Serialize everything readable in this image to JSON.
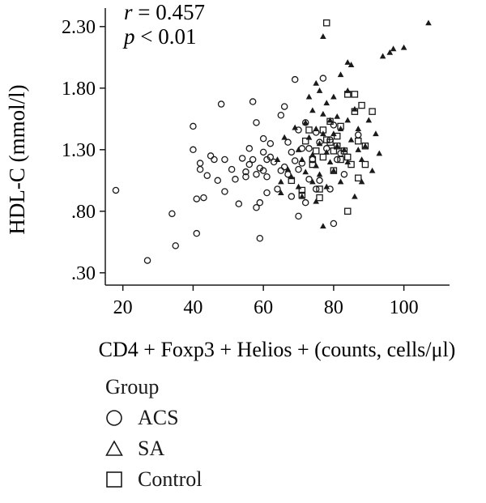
{
  "chart_data": {
    "type": "scatter",
    "xlabel": "CD4 + Foxp3 + Helios + (counts, cells/μl)",
    "ylabel": "HDL-C (mmol/l)",
    "xlim": [
      15,
      113
    ],
    "ylim": [
      0.2,
      2.45
    ],
    "x_ticks": [
      20,
      40,
      60,
      80,
      100
    ],
    "x_tick_labels": [
      "20",
      "40",
      "60",
      "80",
      "100"
    ],
    "y_ticks": [
      0.3,
      0.8,
      1.3,
      1.8,
      2.3
    ],
    "y_tick_labels": [
      ".30",
      ".80",
      "1.30",
      "1.80",
      "2.30"
    ],
    "grid": false,
    "legend_placement": "bottom-left",
    "annotations": [
      {
        "text_r": "r",
        "text_rest": " = 0.457"
      },
      {
        "text_p": "p",
        "text_rest": " < 0.01"
      }
    ],
    "legend_title": "Group",
    "series": [
      {
        "name": "ACS",
        "marker": "circle",
        "points": [
          [
            18,
            0.97
          ],
          [
            27,
            0.4
          ],
          [
            34,
            0.78
          ],
          [
            35,
            0.52
          ],
          [
            40,
            1.49
          ],
          [
            40,
            1.3
          ],
          [
            41,
            0.62
          ],
          [
            41,
            0.9
          ],
          [
            42,
            1.19
          ],
          [
            42,
            1.14
          ],
          [
            43,
            0.91
          ],
          [
            44,
            1.09
          ],
          [
            45,
            1.25
          ],
          [
            46,
            1.22
          ],
          [
            47,
            1.05
          ],
          [
            48,
            1.67
          ],
          [
            49,
            0.96
          ],
          [
            49,
            1.22
          ],
          [
            51,
            1.14
          ],
          [
            52,
            1.06
          ],
          [
            53,
            0.86
          ],
          [
            54,
            1.23
          ],
          [
            55,
            1.08
          ],
          [
            55,
            1.12
          ],
          [
            56,
            1.31
          ],
          [
            56,
            1.18
          ],
          [
            57,
            1.69
          ],
          [
            57,
            1.22
          ],
          [
            58,
            1.52
          ],
          [
            58,
            1.1
          ],
          [
            58,
            0.83
          ],
          [
            59,
            1.15
          ],
          [
            59,
            0.87
          ],
          [
            59,
            0.58
          ],
          [
            60,
            1.39
          ],
          [
            60,
            1.28
          ],
          [
            60,
            1.13
          ],
          [
            61,
            1.22
          ],
          [
            61,
            1.08
          ],
          [
            61,
            0.95
          ],
          [
            62,
            1.35
          ],
          [
            62,
            1.24
          ],
          [
            63,
            1.2
          ],
          [
            64,
            0.98
          ],
          [
            65,
            1.58
          ],
          [
            65,
            1.13
          ],
          [
            66,
            1.65
          ],
          [
            66,
            1.16
          ],
          [
            67,
            1.36
          ],
          [
            67,
            1.1
          ],
          [
            68,
            1.28
          ],
          [
            68,
            0.92
          ],
          [
            69,
            1.87
          ],
          [
            69,
            1.21
          ],
          [
            70,
            1.46
          ],
          [
            70,
            1.14
          ],
          [
            70,
            0.76
          ],
          [
            71,
            1.31
          ],
          [
            71,
            1.19
          ],
          [
            72,
            1.52
          ],
          [
            72,
            0.87
          ],
          [
            73,
            1.31
          ],
          [
            73,
            1.06
          ],
          [
            74,
            1.22
          ],
          [
            75,
            1.44
          ],
          [
            75,
            0.98
          ],
          [
            76,
            1.36
          ],
          [
            76,
            1.05
          ],
          [
            77,
            1.88
          ],
          [
            78,
            1.31
          ],
          [
            79,
            1.38
          ],
          [
            79,
            0.98
          ],
          [
            80,
            1.5
          ],
          [
            80,
            0.7
          ],
          [
            81,
            1.22
          ],
          [
            82,
            1.27
          ],
          [
            83,
            1.1
          ],
          [
            87,
            1.42
          ]
        ]
      },
      {
        "name": "SA",
        "marker": "triangle",
        "points": [
          [
            64,
            1.22
          ],
          [
            65,
            1.04
          ],
          [
            65,
            0.95
          ],
          [
            66,
            1.4
          ],
          [
            67,
            1.14
          ],
          [
            68,
            1.08
          ],
          [
            69,
            1.48
          ],
          [
            70,
            1.3
          ],
          [
            70,
            1.0
          ],
          [
            71,
            1.22
          ],
          [
            71,
            0.92
          ],
          [
            72,
            1.52
          ],
          [
            72,
            1.12
          ],
          [
            73,
            1.73
          ],
          [
            73,
            1.4
          ],
          [
            74,
            1.62
          ],
          [
            74,
            1.26
          ],
          [
            74,
            1.04
          ],
          [
            75,
            1.84
          ],
          [
            75,
            1.47
          ],
          [
            75,
            1.17
          ],
          [
            75,
            0.88
          ],
          [
            76,
            1.78
          ],
          [
            76,
            1.35
          ],
          [
            76,
            1.1
          ],
          [
            77,
            2.22
          ],
          [
            77,
            1.59
          ],
          [
            77,
            1.43
          ],
          [
            77,
            0.68
          ],
          [
            78,
            1.68
          ],
          [
            78,
            1.28
          ],
          [
            78,
            1.0
          ],
          [
            79,
            1.54
          ],
          [
            79,
            1.2
          ],
          [
            80,
            1.73
          ],
          [
            80,
            1.43
          ],
          [
            80,
            1.13
          ],
          [
            81,
            1.57
          ],
          [
            81,
            1.33
          ],
          [
            82,
            1.91
          ],
          [
            82,
            1.47
          ],
          [
            82,
            1.04
          ],
          [
            83,
            1.3
          ],
          [
            84,
            2.01
          ],
          [
            84,
            1.78
          ],
          [
            84,
            1.54
          ],
          [
            84,
            1.2
          ],
          [
            85,
            1.99
          ],
          [
            85,
            1.38
          ],
          [
            86,
            1.63
          ],
          [
            86,
            0.92
          ],
          [
            87,
            1.47
          ],
          [
            87,
            1.3
          ],
          [
            88,
            1.22
          ],
          [
            88,
            1.04
          ],
          [
            89,
            1.33
          ],
          [
            90,
            1.54
          ],
          [
            91,
            1.13
          ],
          [
            92,
            1.43
          ],
          [
            93,
            1.27
          ],
          [
            94,
            2.06
          ],
          [
            96,
            2.09
          ],
          [
            97,
            2.12
          ],
          [
            100,
            2.13
          ],
          [
            107,
            2.33
          ]
        ]
      },
      {
        "name": "Control",
        "marker": "square",
        "points": [
          [
            68,
            1.05
          ],
          [
            71,
            0.97
          ],
          [
            71,
            0.93
          ],
          [
            72,
            1.37
          ],
          [
            73,
            1.46
          ],
          [
            74,
            1.22
          ],
          [
            74,
            1.18
          ],
          [
            75,
            1.29
          ],
          [
            76,
            0.98
          ],
          [
            76,
            0.91
          ],
          [
            77,
            1.46
          ],
          [
            77,
            1.24
          ],
          [
            78,
            1.38
          ],
          [
            78,
            2.33
          ],
          [
            79,
            1.53
          ],
          [
            79,
            1.36
          ],
          [
            80,
            1.13
          ],
          [
            80,
            1.29
          ],
          [
            81,
            1.41
          ],
          [
            81,
            1.33
          ],
          [
            82,
            1.49
          ],
          [
            82,
            1.22
          ],
          [
            83,
            1.29
          ],
          [
            84,
            1.75
          ],
          [
            84,
            1.24
          ],
          [
            84,
            0.8
          ],
          [
            85,
            1.18
          ],
          [
            86,
            1.75
          ],
          [
            86,
            1.61
          ],
          [
            87,
            1.37
          ],
          [
            87,
            1.07
          ],
          [
            88,
            1.66
          ],
          [
            89,
            1.33
          ],
          [
            89,
            1.18
          ],
          [
            91,
            1.61
          ]
        ]
      }
    ]
  }
}
